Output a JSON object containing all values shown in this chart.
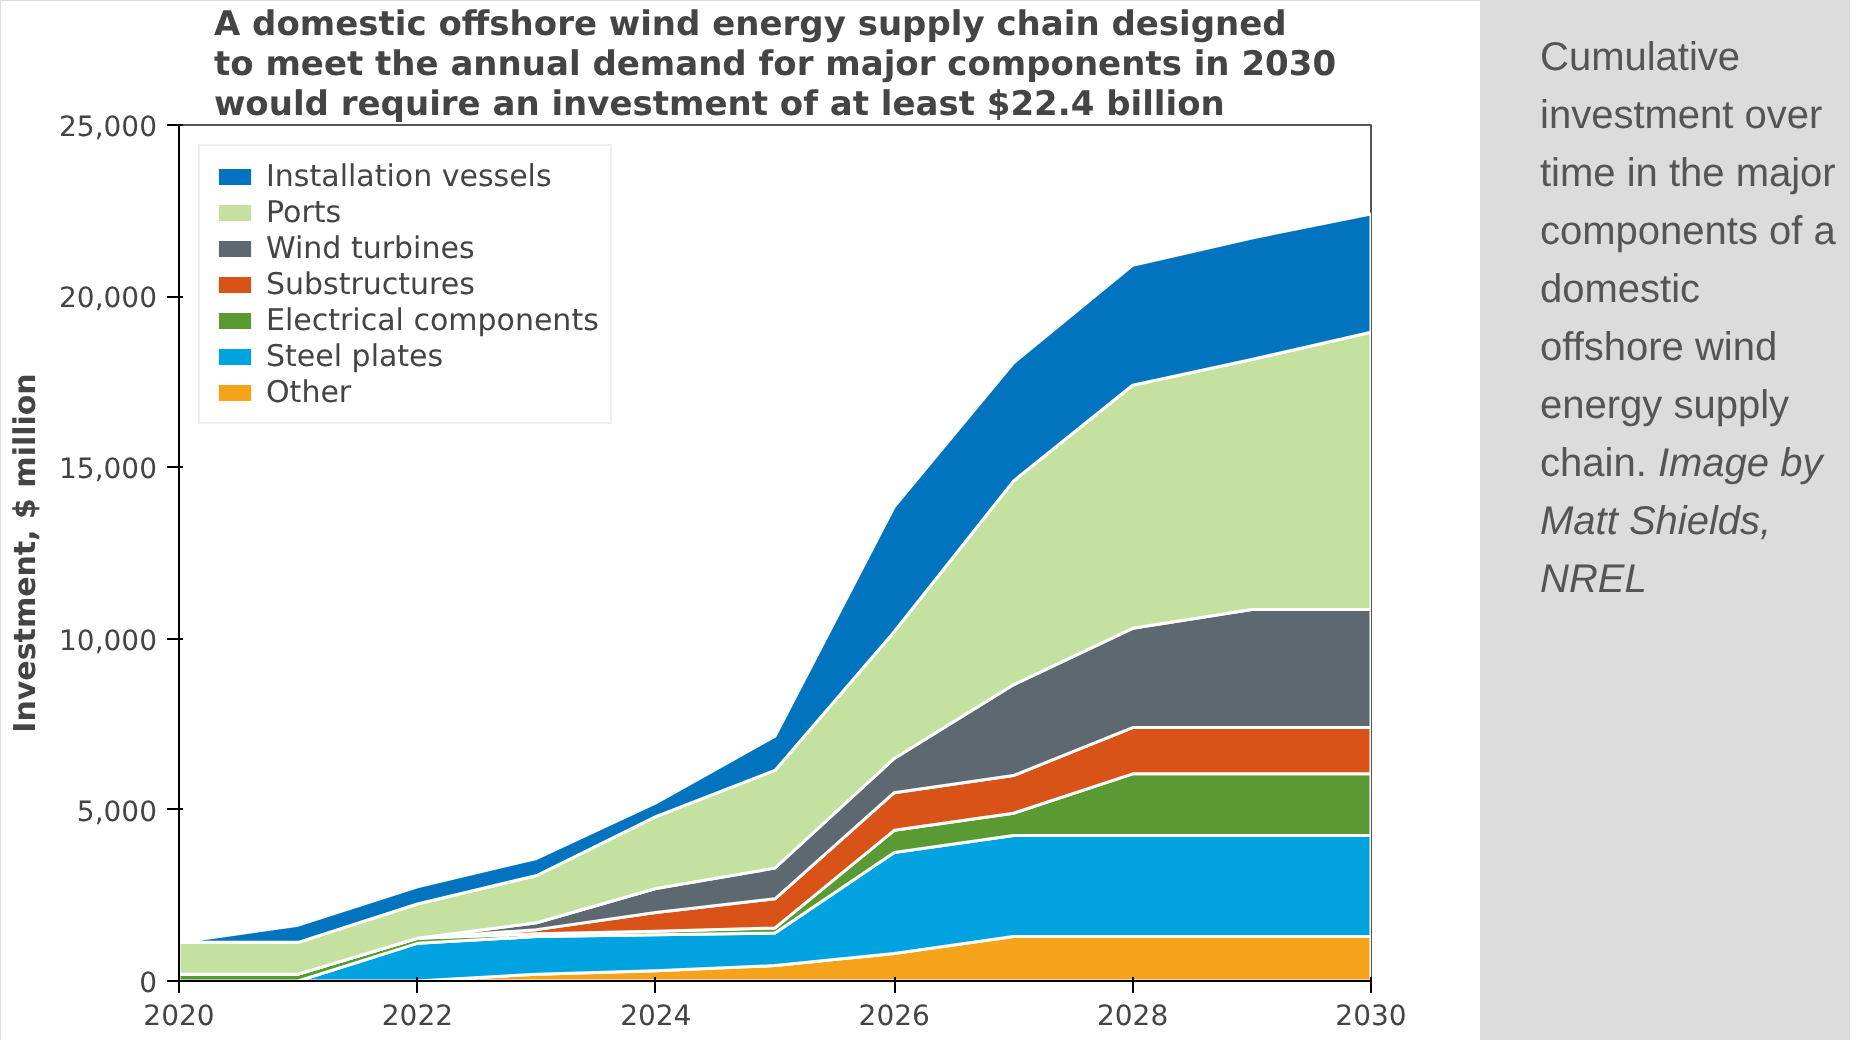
{
  "chart_data": {
    "type": "area",
    "stacked": true,
    "title": "A domestic offshore wind energy supply chain designed to meet the annual demand for major components in 2030 would require an investment of at least $22.4 billion",
    "ylabel": "Investment, $ million",
    "x": [
      2020,
      2021,
      2022,
      2023,
      2024,
      2025,
      2026,
      2027,
      2028,
      2029,
      2030
    ],
    "series": [
      {
        "name": "Other",
        "color": "#f5a31a",
        "values": [
          0,
          0,
          0,
          200,
          300,
          450,
          800,
          1300,
          1300,
          1300,
          1300
        ]
      },
      {
        "name": "Steel plates",
        "color": "#00a3e0",
        "values": [
          0,
          0,
          1100,
          1100,
          1050,
          950,
          2950,
          2950,
          2950,
          2950,
          2950
        ]
      },
      {
        "name": "Electrical components",
        "color": "#5a9a32",
        "values": [
          200,
          200,
          150,
          80,
          100,
          150,
          650,
          650,
          1800,
          1800,
          1800
        ]
      },
      {
        "name": "Substructures",
        "color": "#d95319",
        "values": [
          0,
          0,
          0,
          120,
          550,
          850,
          1100,
          1100,
          1350,
          1350,
          1350
        ]
      },
      {
        "name": "Wind turbines",
        "color": "#5e6870",
        "values": [
          0,
          0,
          0,
          200,
          700,
          900,
          1000,
          2650,
          2900,
          3450,
          3450
        ]
      },
      {
        "name": "Ports",
        "color": "#c5e1a0",
        "values": [
          930,
          930,
          1000,
          1380,
          2100,
          2850,
          3700,
          5950,
          7100,
          7300,
          8100
        ]
      },
      {
        "name": "Installation vessels",
        "color": "#0173bf",
        "values": [
          0,
          500,
          500,
          500,
          400,
          1000,
          3650,
          3450,
          3500,
          3550,
          3450
        ]
      }
    ],
    "xlim": [
      2020,
      2030
    ],
    "xticks": [
      2020,
      2022,
      2024,
      2026,
      2028,
      2030
    ],
    "ylim": [
      0,
      25000
    ],
    "yticks": [
      0,
      {
        "value": 5000,
        "label": "5,000"
      },
      {
        "value": 10000,
        "label": "10,000"
      },
      {
        "value": 15000,
        "label": "15,000"
      },
      {
        "value": 20000,
        "label": "20,000"
      },
      {
        "value": 25000,
        "label": "25,000"
      }
    ],
    "legend": "top left",
    "grid": false,
    "annotations": [
      "Cumulative investment over time in the major components of a domestic offshore wind energy supply chain.",
      "Image by Matt Shields, NREL"
    ]
  }
}
